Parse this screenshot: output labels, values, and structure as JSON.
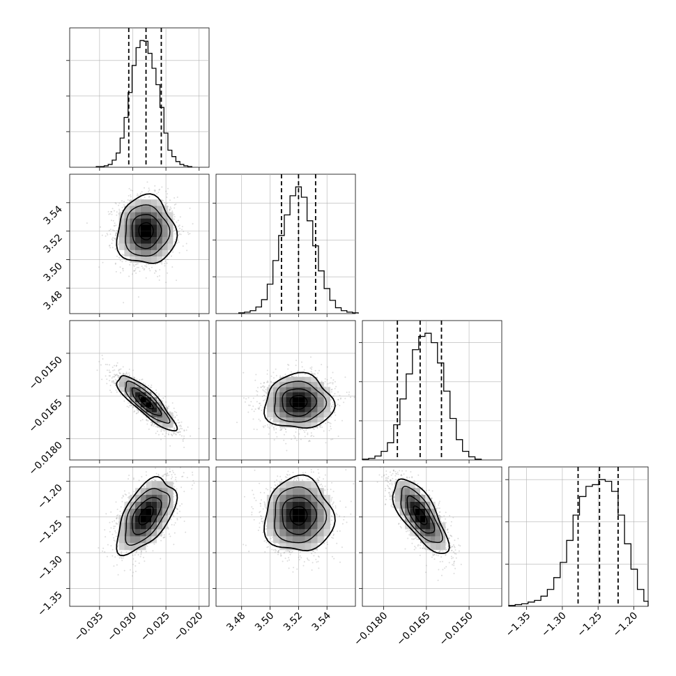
{
  "chart_data": {
    "type": "corner",
    "grid": true,
    "parameters": [
      {
        "range": [
          -0.0395,
          -0.0185
        ],
        "ticks": [
          -0.035,
          -0.03,
          -0.025,
          -0.02
        ],
        "tick_labels": [
          "−0.035",
          "−0.030",
          "−0.025",
          "−0.020"
        ],
        "quantiles": [
          -0.0306,
          -0.028,
          -0.0257
        ],
        "hist_bins": [
          -0.0355,
          -0.0349,
          -0.0343,
          -0.0337,
          -0.0331,
          -0.0325,
          -0.0319,
          -0.0313,
          -0.0307,
          -0.0301,
          -0.0295,
          -0.0289,
          -0.0283,
          -0.0277,
          -0.0271,
          -0.0265,
          -0.0259,
          -0.0253,
          -0.0247,
          -0.0241,
          -0.0235,
          -0.0229,
          -0.0223,
          -0.0217,
          -0.0211
        ],
        "hist_counts": [
          1,
          1,
          2,
          4,
          10,
          20,
          41,
          70,
          105,
          143,
          168,
          178,
          177,
          160,
          139,
          116,
          84,
          48,
          24,
          15,
          8,
          4,
          2,
          1
        ],
        "hist_yticks": [
          50,
          100,
          150
        ]
      },
      {
        "range": [
          3.462,
          3.56
        ],
        "ticks": [
          3.48,
          3.5,
          3.52,
          3.54
        ],
        "tick_labels": [
          "3.48",
          "3.50",
          "3.52",
          "3.54"
        ],
        "quantiles": [
          3.508,
          3.52,
          3.532
        ],
        "hist_bins": [
          3.478,
          3.482,
          3.486,
          3.49,
          3.494,
          3.498,
          3.502,
          3.506,
          3.51,
          3.514,
          3.518,
          3.522,
          3.526,
          3.53,
          3.534,
          3.538,
          3.542,
          3.546,
          3.55,
          3.554,
          3.558,
          3.562
        ],
        "hist_counts": [
          1,
          2,
          4,
          9,
          19,
          40,
          72,
          106,
          134,
          160,
          172,
          158,
          126,
          92,
          58,
          34,
          18,
          8,
          4,
          2,
          1
        ],
        "hist_yticks": [
          50,
          100,
          150
        ]
      },
      {
        "range": [
          -0.01875,
          -0.01385
        ],
        "ticks": [
          -0.018,
          -0.0165,
          -0.015
        ],
        "tick_labels": [
          "−0.0180",
          "−0.0165",
          "−0.0150"
        ],
        "quantiles": [
          -0.01752,
          -0.01672,
          -0.01597
        ],
        "hist_bins": [
          -0.01875,
          -0.01853,
          -0.01831,
          -0.01809,
          -0.01787,
          -0.01765,
          -0.01743,
          -0.01721,
          -0.01699,
          -0.01677,
          -0.01655,
          -0.01633,
          -0.01611,
          -0.01589,
          -0.01567,
          -0.01545,
          -0.01523,
          -0.01501,
          -0.01479,
          -0.01457
        ],
        "hist_counts": [
          1,
          2,
          5,
          11,
          22,
          45,
          78,
          110,
          141,
          158,
          162,
          150,
          124,
          88,
          53,
          26,
          11,
          4,
          1
        ],
        "hist_yticks": [
          50,
          100,
          150
        ]
      },
      {
        "range": [
          -1.375,
          -1.18
        ],
        "ticks": [
          -1.35,
          -1.3,
          -1.25,
          -1.2
        ],
        "tick_labels": [
          "−1.35",
          "−1.30",
          "−1.25",
          "−1.20"
        ],
        "quantiles": [
          -1.278,
          -1.248,
          -1.222
        ],
        "hist_bins": [
          -1.375,
          -1.366,
          -1.357,
          -1.348,
          -1.339,
          -1.33,
          -1.321,
          -1.312,
          -1.303,
          -1.294,
          -1.285,
          -1.276,
          -1.267,
          -1.258,
          -1.249,
          -1.24,
          -1.231,
          -1.222,
          -1.213,
          -1.204,
          -1.195,
          -1.186,
          -1.18
        ],
        "hist_counts": [
          1,
          2,
          3,
          5,
          7,
          12,
          20,
          34,
          52,
          78,
          108,
          130,
          142,
          144,
          150,
          148,
          136,
          108,
          74,
          44,
          20,
          6
        ],
        "hist_yticks": [
          50,
          100,
          150
        ]
      }
    ],
    "pairs": [
      {
        "row": 1,
        "col": 0,
        "center": [
          -0.028,
          3.52
        ],
        "sigma": [
          0.0022,
          0.012
        ],
        "rho": 0.0
      },
      {
        "row": 2,
        "col": 0,
        "center": [
          -0.028,
          -0.01672
        ],
        "sigma": [
          0.0022,
          0.00048
        ],
        "rho": -0.85
      },
      {
        "row": 2,
        "col": 1,
        "center": [
          3.52,
          -0.01672
        ],
        "sigma": [
          0.012,
          0.00048
        ],
        "rho": 0.0
      },
      {
        "row": 3,
        "col": 0,
        "center": [
          -0.028,
          -1.248
        ],
        "sigma": [
          0.0022,
          0.026
        ],
        "rho": 0.55
      },
      {
        "row": 3,
        "col": 1,
        "center": [
          3.52,
          -1.248
        ],
        "sigma": [
          0.012,
          0.026
        ],
        "rho": 0.0
      },
      {
        "row": 3,
        "col": 2,
        "center": [
          -0.01672,
          -1.248
        ],
        "sigma": [
          0.00048,
          0.026
        ],
        "rho": -0.72
      }
    ],
    "contour_levels_sigma": [
      0.5,
      1.0,
      1.5,
      2.0
    ],
    "colors": {
      "line": "#000000",
      "grid": "#b0b0b0",
      "scatter": "#9a9a9a",
      "density_max": "#000000",
      "density_min": "#ffffff"
    }
  }
}
